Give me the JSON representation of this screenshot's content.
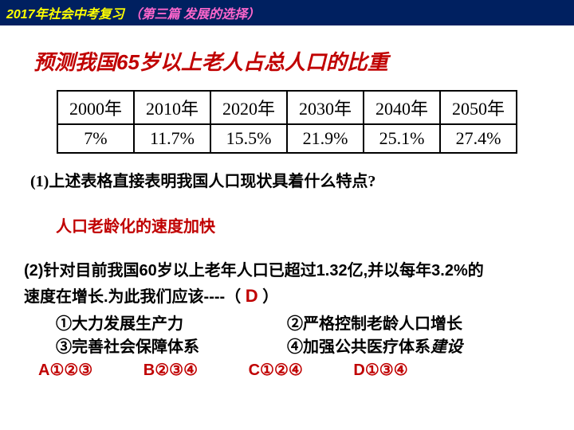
{
  "header": {
    "yellow": "2017年社会中考复习",
    "pink": "（第三篇 发展的选择）"
  },
  "title": "预测我国65岁以上老人占总人口的比重",
  "table": {
    "years": [
      "2000年",
      "2010年",
      "2020年",
      "2030年",
      "2040年",
      "2050年"
    ],
    "values": [
      "7%",
      "11.7%",
      "15.5%",
      "21.9%",
      "25.1%",
      "27.4%"
    ]
  },
  "q1": "(1)上述表格直接表明我国人口现状具着什么特点?",
  "a1": "人口老龄化的速度加快",
  "q2_line1": "(2)针对目前我国60岁以上老年人口已超过1.32亿,并以每年3.2%的",
  "q2_line2_pre": "速度在增长.为此我们应该----（ ",
  "q2_answer": "D",
  "q2_line2_post": " ）",
  "opts": {
    "o1": "①大力发展生产力",
    "o2": "②严格控制老龄人口增长",
    "o3": "③完善社会保障体系",
    "o4_main": "④加强公共医疗体系",
    "o4_tail": "建设"
  },
  "choices": {
    "a": "A①②③",
    "b": "B②③④",
    "c": "C①②④",
    "d": "D①③④"
  },
  "colors": {
    "header_bg": "#002060",
    "yellow": "#ffff00",
    "pink": "#ff66cc",
    "red": "#c00000",
    "black": "#000000",
    "white": "#ffffff"
  }
}
